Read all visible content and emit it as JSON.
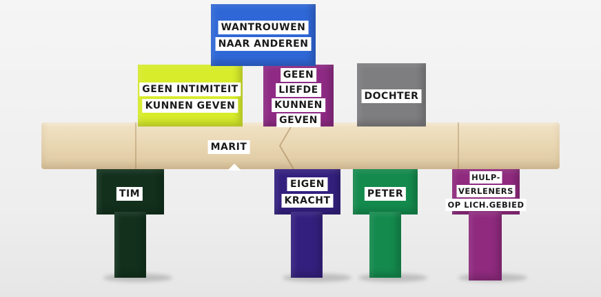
{
  "colors": {
    "blue": "#2f67d6",
    "lime": "#d8ec2c",
    "magenta": "#8e2a84",
    "gray": "#7e7e80",
    "dark_green": "#12301c",
    "indigo": "#33207e",
    "green": "#148a4d",
    "pink": "#8f2a7e",
    "wood": "#eddcb9"
  },
  "blocks": {
    "top": {
      "lines": [
        "WANTROUWEN",
        "NAAR ANDEREN"
      ]
    },
    "left_mid": {
      "lines": [
        "GEEN INTIMITEIT",
        "KUNNEN GEVEN"
      ]
    },
    "center_mid": {
      "lines": [
        "GEEN",
        "LIEFDE",
        "KUNNEN",
        "GEVEN"
      ]
    },
    "right_mid": {
      "lines": [
        "DOCHTER"
      ]
    },
    "beam": {
      "lines": [
        "MARIT"
      ]
    },
    "leg1": {
      "lines": [
        "TIM"
      ]
    },
    "leg2": {
      "lines": [
        "EIGEN",
        "KRACHT"
      ]
    },
    "leg3": {
      "lines": [
        "PETER"
      ]
    },
    "leg4": {
      "lines": [
        "HULP-",
        "VERLENERS",
        "OP LICH.GEBIED"
      ]
    }
  }
}
